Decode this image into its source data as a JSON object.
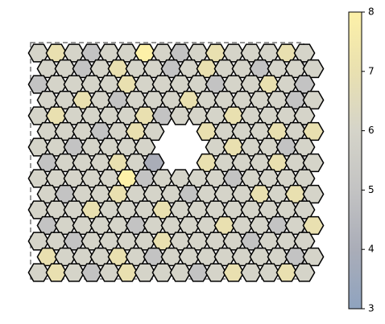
{
  "chart_data": {
    "type": "tessellation",
    "values": [
      [
        6,
        7,
        6,
        5,
        6,
        6,
        8,
        6,
        5,
        6,
        7,
        6,
        6,
        6,
        7,
        6
      ],
      [
        6,
        6,
        5,
        6,
        7,
        6,
        6,
        5,
        6,
        7,
        6,
        6,
        5,
        6,
        6,
        6
      ],
      [
        5,
        6,
        6,
        6,
        6,
        7,
        6,
        6,
        6,
        6,
        5,
        6,
        6,
        7,
        6,
        5
      ],
      [
        6,
        6,
        7,
        6,
        5,
        6,
        6,
        6,
        7,
        6,
        6,
        6,
        6,
        6,
        5,
        6
      ],
      [
        6,
        7,
        6,
        6,
        6,
        6,
        7,
        5,
        6,
        6,
        6,
        7,
        6,
        6,
        6,
        6
      ],
      [
        6,
        6,
        6,
        5,
        6,
        7,
        6,
        null,
        null,
        7,
        6,
        6,
        6,
        7,
        6,
        7
      ],
      [
        6,
        6,
        5,
        6,
        6,
        6,
        6,
        null,
        null,
        null,
        6,
        7,
        6,
        6,
        5,
        6
      ],
      [
        5,
        6,
        6,
        6,
        7,
        6,
        4,
        null,
        null,
        7,
        6,
        6,
        6,
        7,
        6,
        6
      ],
      [
        6,
        6,
        6,
        6,
        6,
        8,
        5,
        6,
        6,
        6,
        6,
        5,
        6,
        6,
        6,
        6
      ],
      [
        6,
        5,
        6,
        6,
        7,
        6,
        6,
        6,
        5,
        6,
        6,
        6,
        7,
        6,
        7,
        6
      ],
      [
        6,
        6,
        6,
        7,
        6,
        6,
        6,
        7,
        6,
        6,
        6,
        6,
        6,
        6,
        6,
        6
      ],
      [
        5,
        6,
        6,
        6,
        6,
        5,
        6,
        6,
        6,
        6,
        7,
        6,
        6,
        5,
        6,
        7
      ],
      [
        6,
        6,
        5,
        6,
        6,
        6,
        6,
        7,
        6,
        6,
        6,
        6,
        5,
        6,
        6,
        6
      ],
      [
        7,
        6,
        6,
        6,
        7,
        6,
        5,
        6,
        6,
        6,
        6,
        6,
        6,
        6,
        5,
        6
      ],
      [
        6,
        7,
        6,
        5,
        6,
        7,
        6,
        6,
        6,
        5,
        6,
        7,
        6,
        6,
        7,
        6
      ]
    ],
    "zlim": [
      3,
      8
    ],
    "zticks": [
      3,
      4,
      5,
      6,
      7,
      8
    ],
    "colors": [
      "#8fa3bf",
      "#aaadb8",
      "#c3c3c3",
      "#d5d4c9",
      "#e9e0b0",
      "#fdf1a8"
    ]
  }
}
